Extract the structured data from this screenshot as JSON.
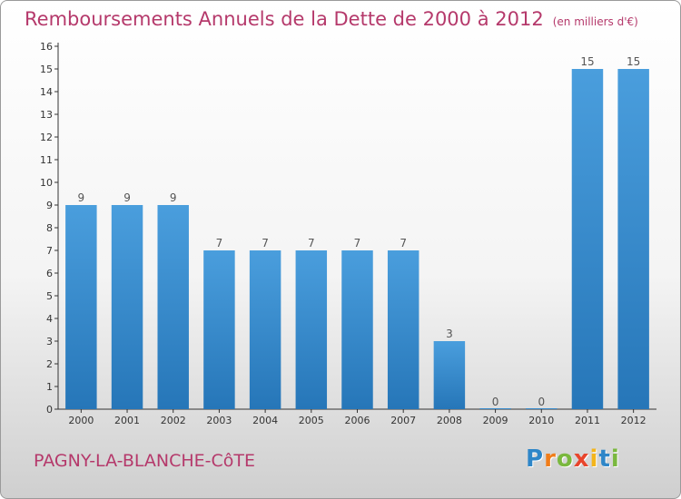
{
  "title": "Remboursements Annuels de la Dette de 2000 à 2012",
  "subtitle": "(en milliers d'€)",
  "commune": "PAGNY-LA-BLANCHE-CôTE",
  "logo": {
    "letters": [
      "P",
      "r",
      "o",
      "x",
      "i",
      "t",
      "i"
    ],
    "colors": [
      "#2e86c8",
      "#f07d1a",
      "#7ab83e",
      "#e8452c",
      "#f3b51c",
      "#2e86c8",
      "#7ab83e"
    ]
  },
  "colors": {
    "bar": "#4a9edd",
    "bar_dark": "#2676b8",
    "axis": "#333333",
    "grid": "#bbbbbb",
    "text": "#333333"
  },
  "chart_data": {
    "type": "bar",
    "categories": [
      "2000",
      "2001",
      "2002",
      "2003",
      "2004",
      "2005",
      "2006",
      "2007",
      "2008",
      "2009",
      "2010",
      "2011",
      "2012"
    ],
    "values": [
      9,
      9,
      9,
      7,
      7,
      7,
      7,
      7,
      3,
      0,
      0,
      15,
      15
    ],
    "data_labels": [
      "9",
      "9",
      "9",
      "7",
      "7",
      "7",
      "7",
      "7",
      "3",
      "0",
      "0",
      "15",
      "15"
    ],
    "yticks": [
      "0",
      "1",
      "2",
      "3",
      "4",
      "5",
      "6",
      "7",
      "8",
      "9",
      "10",
      "11",
      "12",
      "13",
      "14",
      "15",
      "16"
    ],
    "ylim": [
      0,
      16
    ],
    "grid": false,
    "title": "Remboursements Annuels de la Dette de 2000 à 2012",
    "xlabel": "",
    "ylabel": ""
  }
}
